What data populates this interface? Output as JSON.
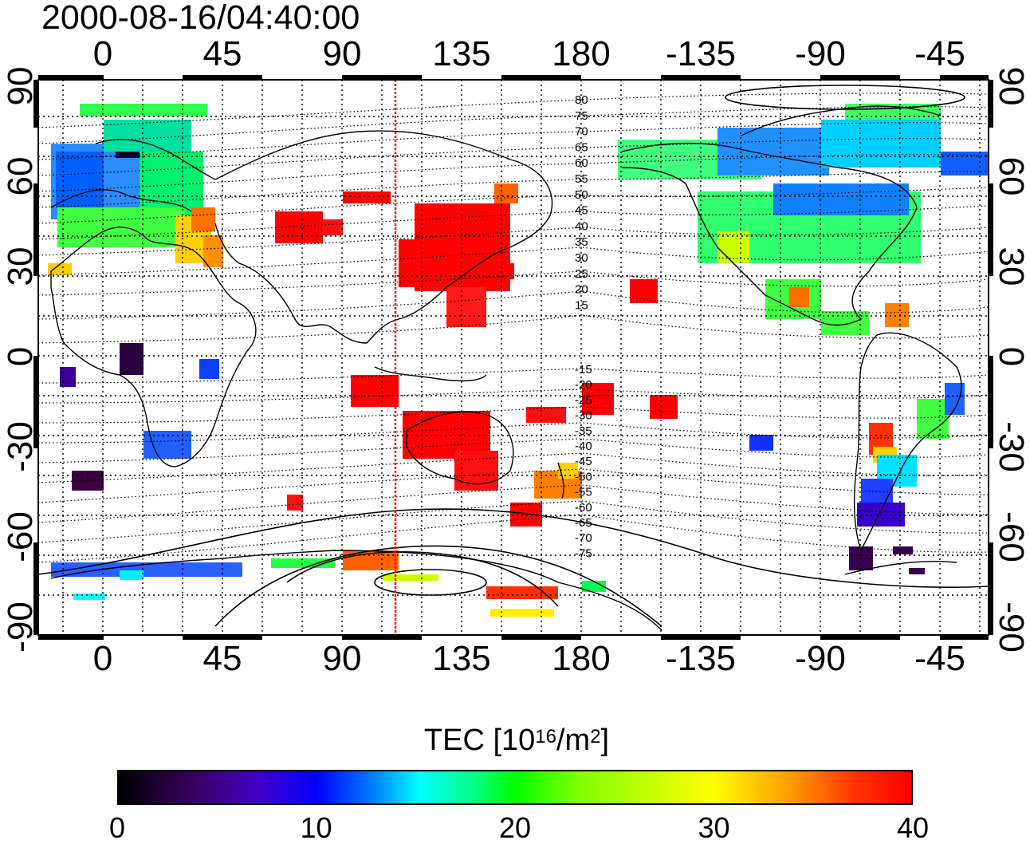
{
  "timestamp": "2000-08-16/04:40:00",
  "map": {
    "x_ticks_top": [
      "0",
      "45",
      "90",
      "135",
      "180",
      "-135",
      "-90",
      "-45"
    ],
    "x_ticks_bottom": [
      "0",
      "45",
      "90",
      "135",
      "180",
      "-135",
      "-90",
      "-45"
    ],
    "y_ticks_left": [
      "90",
      "60",
      "30",
      "0",
      "-30",
      "-60",
      "-90"
    ],
    "y_ticks_right": [
      "90",
      "60",
      "30",
      "0",
      "-30",
      "-60",
      "-90"
    ],
    "sun_longitude_marker": 110,
    "magnetic_latitude_labels_north": [
      "80",
      "75",
      "70",
      "65",
      "60",
      "55",
      "50",
      "45",
      "40",
      "35",
      "30",
      "25",
      "20",
      "15"
    ],
    "magnetic_latitude_labels_south": [
      "-15",
      "-20",
      "-25",
      "-30",
      "-35",
      "-40",
      "-45",
      "-50",
      "-55",
      "-60",
      "-65",
      "-70",
      "-75"
    ],
    "colors": {
      "frame": "#000000",
      "grid": "#000000",
      "sun_line": "#ff0000"
    }
  },
  "colorbar": {
    "title_main": "TEC  [10",
    "title_exp": "16",
    "title_mid": "/m",
    "title_exp2": "2",
    "title_end": "]",
    "ticks": [
      "0",
      "10",
      "20",
      "30",
      "40"
    ],
    "range": [
      0,
      40
    ]
  }
}
